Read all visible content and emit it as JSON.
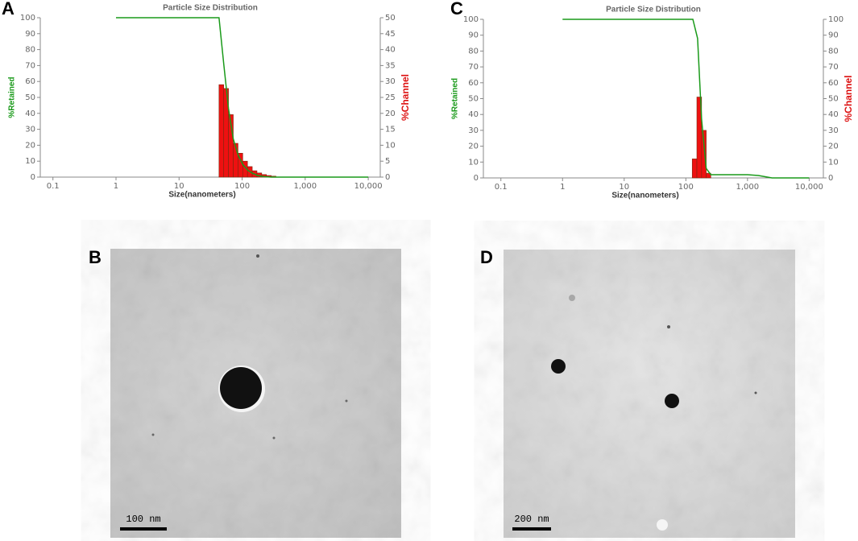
{
  "chart_data": [
    {
      "type": "histogram",
      "panel": "A",
      "title": "Particle Size Distribution",
      "xlabel": "Size(nanometers)",
      "ylabel": "%Retained",
      "ylabel_color": "#1a9a1a",
      "y2label": "%Channel",
      "y2label_color": "#dd1111",
      "xscale": "log",
      "xlim": [
        0.063,
        15500
      ],
      "xticks": [
        0.1,
        1,
        10,
        100,
        {
          "value": 1000,
          "label": "1,000"
        },
        {
          "value": 10000,
          "label": "10,000"
        }
      ],
      "ylim": [
        0,
        100
      ],
      "yticks": [
        0,
        10,
        20,
        30,
        40,
        50,
        60,
        70,
        80,
        90,
        100
      ],
      "y2lim": [
        0,
        50
      ],
      "y2ticks": [
        0,
        5,
        10,
        15,
        20,
        25,
        30,
        35,
        40,
        45,
        50
      ],
      "histogram": {
        "axis": "y2",
        "color": "#ee1111",
        "bins": [
          43,
          51.1,
          60.8,
          72.3,
          86,
          102.2,
          121.6,
          144.6,
          171.9,
          204.4,
          243.1,
          289.1,
          343.8
        ],
        "values": [
          29,
          27.8,
          19.6,
          10.6,
          7.5,
          5,
          3.3,
          2,
          1.3,
          0.8,
          0.5,
          0.3
        ]
      },
      "line": {
        "color": "#1a9a1a",
        "x": [
          1,
          43,
          51.1,
          60.8,
          72.3,
          86,
          102.2,
          121.6,
          144.6,
          171.9,
          204.4,
          243.1,
          289.1,
          10000
        ],
        "values": [
          100,
          100,
          71,
          43,
          24,
          14,
          8,
          4.5,
          2.5,
          1.2,
          0.5,
          0.2,
          0,
          0
        ]
      }
    },
    {
      "type": "histogram",
      "panel": "C",
      "title": "Particle Size Distribution",
      "xlabel": "Size(nanometers)",
      "ylabel": "%Retained",
      "ylabel_color": "#1a9a1a",
      "y2label": "%Channel",
      "y2label_color": "#dd1111",
      "xscale": "log",
      "xlim": [
        0.052,
        17000
      ],
      "xticks": [
        0.1,
        1,
        10,
        100,
        {
          "value": 1000,
          "label": "1,000"
        },
        {
          "value": 10000,
          "label": "10,000"
        }
      ],
      "ylim": [
        0,
        100
      ],
      "yticks": [
        0,
        10,
        20,
        30,
        40,
        50,
        60,
        70,
        80,
        90,
        100
      ],
      "y2lim": [
        0,
        100
      ],
      "y2ticks": [
        0,
        10,
        20,
        30,
        40,
        50,
        60,
        70,
        80,
        90,
        100
      ],
      "histogram": {
        "axis": "y2",
        "color": "#ee1111",
        "bins": [
          127,
          151,
          180,
          214,
          254
        ],
        "values": [
          12,
          51,
          30,
          3
        ]
      },
      "line": {
        "color": "#1a9a1a",
        "x": [
          1,
          130,
          155,
          180,
          214,
          254,
          1000,
          1500,
          2500,
          10000
        ],
        "values": [
          100,
          100,
          88,
          37,
          6,
          2,
          2,
          1.5,
          0,
          0
        ]
      }
    }
  ],
  "images": [
    {
      "panel": "B",
      "scale_bar": "100 nm"
    },
    {
      "panel": "D",
      "scale_bar": "200 nm"
    }
  ]
}
